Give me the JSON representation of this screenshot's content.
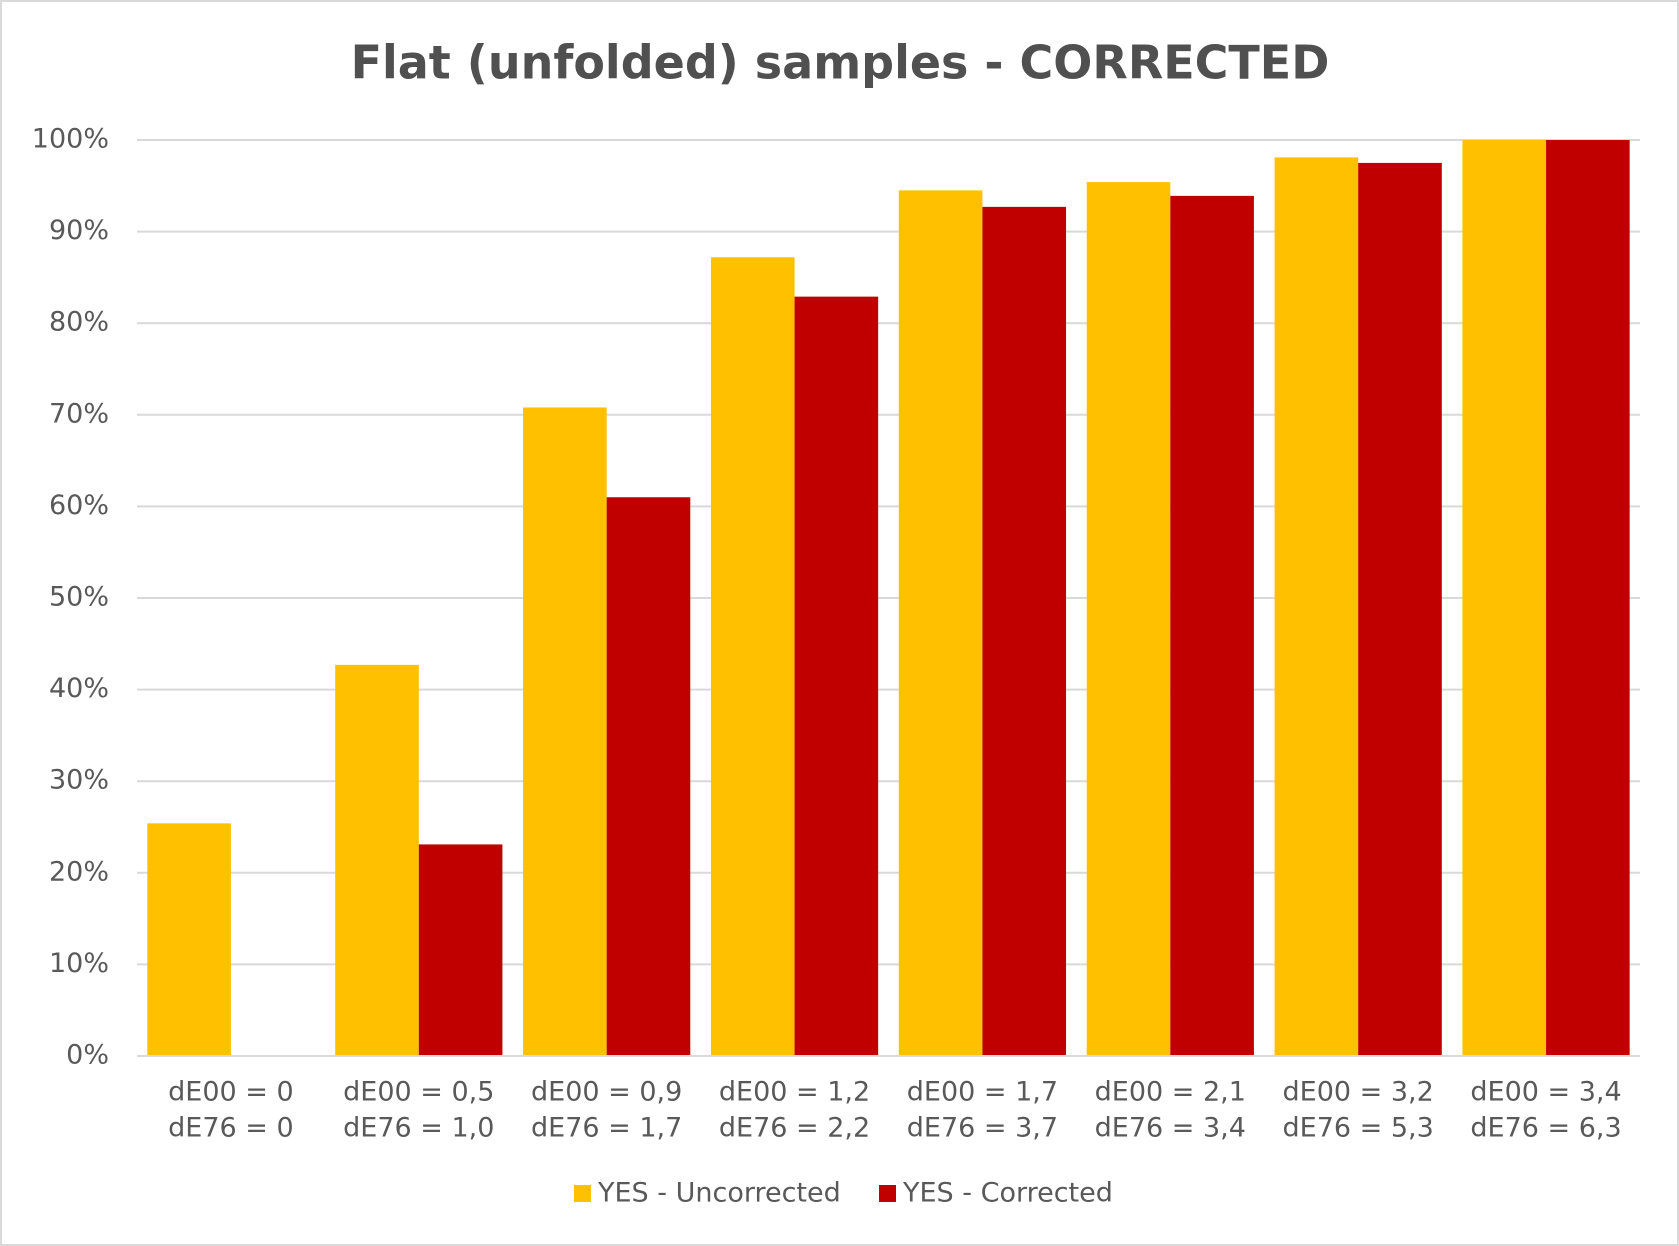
{
  "chart_data": {
    "type": "bar",
    "title": "Flat (unfolded) samples - CORRECTED",
    "categories": [
      [
        "dE00 = 0",
        "dE76 = 0"
      ],
      [
        "dE00 = 0,5",
        "dE76 = 1,0"
      ],
      [
        "dE00 = 0,9",
        "dE76 = 1,7"
      ],
      [
        "dE00 = 1,2",
        "dE76 = 2,2"
      ],
      [
        "dE00 = 1,7",
        "dE76 = 3,7"
      ],
      [
        "dE00 = 2,1",
        "dE76 = 3,4"
      ],
      [
        "dE00 = 3,2",
        "dE76 = 5,3"
      ],
      [
        "dE00 = 3,4",
        "dE76 = 6,3"
      ]
    ],
    "series": [
      {
        "name": "YES - Uncorrected",
        "color": "#FFC000",
        "values": [
          25.4,
          42.7,
          70.8,
          87.2,
          94.5,
          95.4,
          98.1,
          100
        ]
      },
      {
        "name": "YES - Corrected",
        "color": "#C00000",
        "values": [
          0,
          23.1,
          61.0,
          82.9,
          92.7,
          93.9,
          97.5,
          100
        ]
      }
    ],
    "ylim": [
      0,
      100
    ],
    "yticks": [
      {
        "value": 0,
        "label": "0%"
      },
      {
        "value": 10,
        "label": "10%"
      },
      {
        "value": 20,
        "label": "20%"
      },
      {
        "value": 30,
        "label": "30%"
      },
      {
        "value": 40,
        "label": "40%"
      },
      {
        "value": 50,
        "label": "50%"
      },
      {
        "value": 60,
        "label": "60%"
      },
      {
        "value": 70,
        "label": "70%"
      },
      {
        "value": 80,
        "label": "80%"
      },
      {
        "value": 90,
        "label": "90%"
      },
      {
        "value": 100,
        "label": "100%"
      }
    ],
    "grid": true,
    "legend": "bottom"
  }
}
